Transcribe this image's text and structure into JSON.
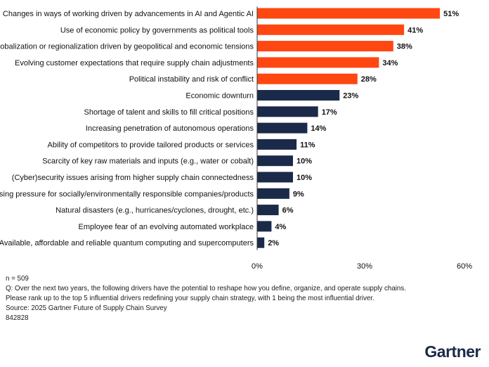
{
  "chart_data": {
    "type": "bar",
    "orientation": "horizontal",
    "categories": [
      "Changes in ways of working driven by advancements in AI and Agentic AI",
      "Use of economic policy by governments as political tools",
      "Deglobalization or regionalization driven by geopolitical and economic tensions",
      "Evolving customer expectations that require supply chain adjustments",
      "Political instability and risk of conflict",
      "Economic downturn",
      "Shortage of talent and skills to fill critical positions",
      "Increasing penetration of autonomous operations",
      "Ability of competitors to provide tailored products or services",
      "Scarcity of key raw materials and inputs (e.g., water or cobalt)",
      "(Cyber)security issues arising from higher supply chain connectedness",
      "Increasing pressure for socially/environmentally responsible companies/products",
      "Natural disasters (e.g., hurricanes/cyclones, drought, etc.)",
      "Employee fear of an evolving automated workplace",
      "Available, affordable and reliable quantum computing and supercomputers"
    ],
    "values": [
      51,
      41,
      38,
      34,
      28,
      23,
      17,
      14,
      11,
      10,
      10,
      9,
      6,
      4,
      2
    ],
    "value_labels": [
      "51%",
      "41%",
      "38%",
      "34%",
      "28%",
      "23%",
      "17%",
      "14%",
      "11%",
      "10%",
      "10%",
      "9%",
      "6%",
      "4%",
      "2%"
    ],
    "highlight_count": 5,
    "xlim": [
      0,
      60
    ],
    "xticks": [
      "0%",
      "30%",
      "60%"
    ],
    "grid": false,
    "colors": {
      "highlight": "#ff4712",
      "default": "#1b2a49",
      "axis": "#333333"
    }
  },
  "footnotes": [
    "n = 509",
    "Q: Over the next two years, the following drivers have the potential to reshape how you define, organize, and operate supply chains.",
    "Please rank up to the top 5 influential drivers redefining your supply chain strategy, with 1 being the most influential driver.",
    "Source: 2025 Gartner Future of Supply Chain Survey",
    "842828"
  ],
  "brand": {
    "logo_text": "Gartner"
  }
}
